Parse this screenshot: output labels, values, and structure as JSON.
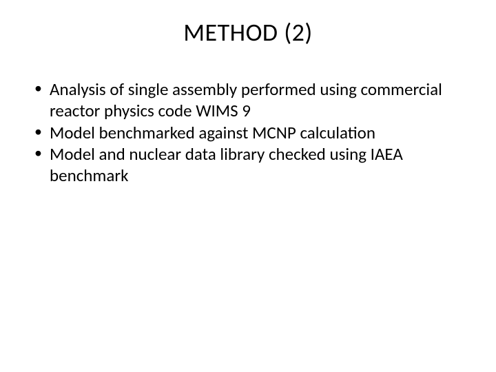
{
  "slide": {
    "title": "METHOD (2)",
    "title_fontsize": 36,
    "body_fontsize": 25,
    "background_color": "#ffffff",
    "text_color": "#000000",
    "bullets": [
      "Analysis of single assembly performed using commercial reactor physics code WIMS 9",
      "Model benchmarked against MCNP calculation",
      "Model and nuclear data library checked using IAEA benchmark"
    ]
  }
}
